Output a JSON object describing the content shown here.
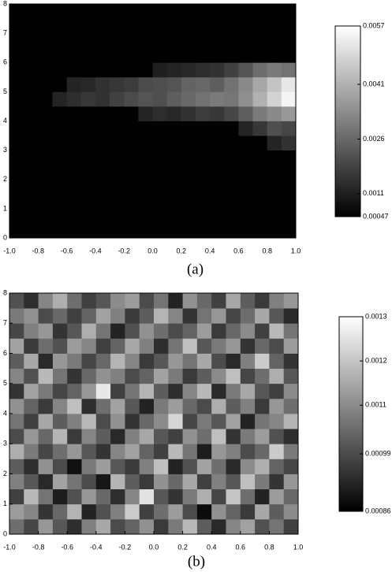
{
  "chart_data": [
    {
      "type": "heatmap",
      "caption": "(a)",
      "xlim": [
        -1,
        1
      ],
      "ylim": [
        0,
        8
      ],
      "xticks": [
        {
          "value": -1,
          "label": "-1.0"
        },
        {
          "value": -0.8,
          "label": "-0.8"
        },
        {
          "value": -0.6,
          "label": "-0.6"
        },
        {
          "value": -0.4,
          "label": "-0.4"
        },
        {
          "value": -0.2,
          "label": "-0.2"
        },
        {
          "value": 0,
          "label": "0.0"
        },
        {
          "value": 0.2,
          "label": "0.2"
        },
        {
          "value": 0.4,
          "label": "0.4"
        },
        {
          "value": 0.6,
          "label": "0.6"
        },
        {
          "value": 0.8,
          "label": "0.8"
        },
        {
          "value": 1,
          "label": "1.0"
        }
      ],
      "yticks": [
        0,
        1,
        2,
        3,
        4,
        5,
        6,
        7,
        8
      ],
      "clim": [
        0.00047,
        0.0057
      ],
      "cticks": [
        0.0057,
        0.0041,
        0.0026,
        0.0011,
        0.00047
      ],
      "z": [
        [
          0.0005,
          0.0005,
          0.0005,
          0.0005,
          0.0005,
          0.0005,
          0.0005,
          0.0005,
          0.0005,
          0.0005,
          0.0005,
          0.0005,
          0.0005,
          0.0005,
          0.0005,
          0.0005,
          0.0005,
          0.0005,
          0.0005,
          0.0005
        ],
        [
          0.0005,
          0.0005,
          0.0005,
          0.0005,
          0.0005,
          0.0005,
          0.0005,
          0.0005,
          0.0005,
          0.0005,
          0.0005,
          0.0005,
          0.0005,
          0.0005,
          0.0005,
          0.0005,
          0.0005,
          0.0005,
          0.0005,
          0.0005
        ],
        [
          0.0005,
          0.0005,
          0.0005,
          0.0005,
          0.0005,
          0.0005,
          0.0005,
          0.0005,
          0.0005,
          0.0005,
          0.0005,
          0.0005,
          0.0005,
          0.0005,
          0.0005,
          0.0005,
          0.0005,
          0.0005,
          0.0005,
          0.0005
        ],
        [
          0.0005,
          0.0005,
          0.0005,
          0.0005,
          0.0005,
          0.0005,
          0.0005,
          0.0005,
          0.0005,
          0.0005,
          0.0005,
          0.0005,
          0.0005,
          0.0005,
          0.0005,
          0.0005,
          0.0005,
          0.0005,
          0.0005,
          0.0005
        ],
        [
          0.0005,
          0.0005,
          0.0005,
          0.0005,
          0.0005,
          0.0005,
          0.0005,
          0.0005,
          0.0005,
          0.0005,
          0.0005,
          0.0005,
          0.0005,
          0.0005,
          0.0005,
          0.0005,
          0.0005,
          0.0005,
          0.0005,
          0.0005
        ],
        [
          0.0005,
          0.0005,
          0.0005,
          0.0005,
          0.0005,
          0.0005,
          0.0005,
          0.0005,
          0.0005,
          0.0005,
          0.0005,
          0.0005,
          0.0005,
          0.0005,
          0.0005,
          0.0005,
          0.0005,
          0.0005,
          0.0005,
          0.0005
        ],
        [
          0.0005,
          0.0005,
          0.0005,
          0.0005,
          0.0005,
          0.0005,
          0.0005,
          0.0005,
          0.0005,
          0.0005,
          0.0005,
          0.0005,
          0.0005,
          0.0005,
          0.0005,
          0.0005,
          0.0005,
          0.0005,
          0.0012,
          0.0015
        ],
        [
          0.0005,
          0.0005,
          0.0005,
          0.0005,
          0.0005,
          0.0005,
          0.0005,
          0.0005,
          0.0005,
          0.0005,
          0.0005,
          0.0005,
          0.0005,
          0.0005,
          0.0005,
          0.0005,
          0.0012,
          0.0016,
          0.0021,
          0.0019
        ],
        [
          0.0005,
          0.0005,
          0.0005,
          0.0005,
          0.0005,
          0.0005,
          0.0005,
          0.0005,
          0.0005,
          0.0012,
          0.0014,
          0.0013,
          0.0015,
          0.0017,
          0.0016,
          0.0019,
          0.0024,
          0.003,
          0.0033,
          0.0036
        ],
        [
          0.0005,
          0.0005,
          0.0005,
          0.0012,
          0.0014,
          0.0016,
          0.0015,
          0.0018,
          0.002,
          0.0022,
          0.0021,
          0.0024,
          0.0026,
          0.0028,
          0.003,
          0.0029,
          0.0034,
          0.0041,
          0.0048,
          0.0055
        ],
        [
          0.0005,
          0.0005,
          0.0005,
          0.0005,
          0.0012,
          0.0013,
          0.0015,
          0.0016,
          0.0017,
          0.002,
          0.0021,
          0.0022,
          0.0025,
          0.0026,
          0.0024,
          0.0028,
          0.0033,
          0.0039,
          0.0045,
          0.0052
        ],
        [
          0.0005,
          0.0005,
          0.0005,
          0.0005,
          0.0005,
          0.0005,
          0.0005,
          0.0005,
          0.0005,
          0.0005,
          0.0011,
          0.0012,
          0.0013,
          0.0014,
          0.0015,
          0.0018,
          0.0022,
          0.0027,
          0.003,
          0.0028
        ],
        [
          0.0005,
          0.0005,
          0.0005,
          0.0005,
          0.0005,
          0.0005,
          0.0005,
          0.0005,
          0.0005,
          0.0005,
          0.0005,
          0.0005,
          0.0005,
          0.0005,
          0.0005,
          0.0005,
          0.0005,
          0.0005,
          0.0005,
          0.0005
        ],
        [
          0.0005,
          0.0005,
          0.0005,
          0.0005,
          0.0005,
          0.0005,
          0.0005,
          0.0005,
          0.0005,
          0.0005,
          0.0005,
          0.0005,
          0.0005,
          0.0005,
          0.0005,
          0.0005,
          0.0005,
          0.0005,
          0.0005,
          0.0005
        ],
        [
          0.0005,
          0.0005,
          0.0005,
          0.0005,
          0.0005,
          0.0005,
          0.0005,
          0.0005,
          0.0005,
          0.0005,
          0.0005,
          0.0005,
          0.0005,
          0.0005,
          0.0005,
          0.0005,
          0.0005,
          0.0005,
          0.0005,
          0.0005
        ],
        [
          0.0005,
          0.0005,
          0.0005,
          0.0005,
          0.0005,
          0.0005,
          0.0005,
          0.0005,
          0.0005,
          0.0005,
          0.0005,
          0.0005,
          0.0005,
          0.0005,
          0.0005,
          0.0005,
          0.0005,
          0.0005,
          0.0005,
          0.0005
        ]
      ]
    },
    {
      "type": "heatmap",
      "caption": "(b)",
      "xlim": [
        -1,
        1
      ],
      "ylim": [
        0,
        8
      ],
      "xticks": [
        {
          "value": -1,
          "label": "-1.0"
        },
        {
          "value": -0.8,
          "label": "-0.8"
        },
        {
          "value": -0.6,
          "label": "-0.6"
        },
        {
          "value": -0.4,
          "label": "-0.4"
        },
        {
          "value": -0.2,
          "label": "-0.2"
        },
        {
          "value": 0,
          "label": "0.0"
        },
        {
          "value": 0.2,
          "label": "0.2"
        },
        {
          "value": 0.4,
          "label": "0.4"
        },
        {
          "value": 0.6,
          "label": "0.6"
        },
        {
          "value": 0.8,
          "label": "0.8"
        },
        {
          "value": 1,
          "label": "1.0"
        }
      ],
      "yticks": [
        0,
        1,
        2,
        3,
        4,
        5,
        6,
        7,
        8
      ],
      "clim": [
        0.00086,
        0.0013
      ],
      "cticks": [
        0.0013,
        0.0012,
        0.0011,
        0.00099,
        0.00086
      ],
      "z": [
        [
          0.00105,
          0.00098,
          0.00112,
          0.00101,
          0.00094,
          0.00108,
          0.00115,
          0.00099,
          0.00103,
          0.00111,
          0.00096,
          0.00107,
          0.00118,
          0.00102,
          0.00093,
          0.00109,
          0.00114,
          0.001,
          0.00106,
          0.00097
        ],
        [
          0.00113,
          0.00109,
          0.00095,
          0.00104,
          0.00117,
          0.00092,
          0.001,
          0.00108,
          0.00121,
          0.00097,
          0.00105,
          0.00113,
          0.00099,
          0.00088,
          0.00111,
          0.00103,
          0.00096,
          0.00115,
          0.00102,
          0.0011
        ],
        [
          0.00097,
          0.00118,
          0.00106,
          0.00091,
          0.001,
          0.00112,
          0.00104,
          0.00094,
          0.00109,
          0.00125,
          0.00101,
          0.00095,
          0.00107,
          0.00116,
          0.00098,
          0.0012,
          0.00105,
          0.00092,
          0.00113,
          0.00104
        ],
        [
          0.00108,
          0.00101,
          0.00093,
          0.00114,
          0.00106,
          0.00099,
          0.0009,
          0.00117,
          0.00102,
          0.00096,
          0.00111,
          0.00104,
          0.00115,
          0.00097,
          0.00108,
          0.00101,
          0.00119,
          0.00107,
          0.00095,
          0.00112
        ],
        [
          0.00102,
          0.00094,
          0.00111,
          0.00099,
          0.00089,
          0.00107,
          0.00113,
          0.00101,
          0.00096,
          0.00108,
          0.00119,
          0.00092,
          0.001,
          0.00114,
          0.00105,
          0.00093,
          0.0011,
          0.00116,
          0.00103,
          0.00098
        ],
        [
          0.00116,
          0.00107,
          0.00098,
          0.00105,
          0.00112,
          0.00101,
          0.00095,
          0.00109,
          0.00114,
          0.00103,
          0.00097,
          0.00118,
          0.00106,
          0.00091,
          0.00112,
          0.00108,
          0.00099,
          0.00104,
          0.00121,
          0.00107
        ],
        [
          0.00099,
          0.00112,
          0.00104,
          0.00117,
          0.00096,
          0.00109,
          0.00102,
          0.00093,
          0.00108,
          0.00115,
          0.00101,
          0.00097,
          0.00111,
          0.00105,
          0.00119,
          0.00095,
          0.00107,
          0.00113,
          0.001,
          0.00094
        ],
        [
          0.00106,
          0.00097,
          0.00115,
          0.00102,
          0.00108,
          0.00118,
          0.00099,
          0.00111,
          0.00095,
          0.00104,
          0.0011,
          0.00123,
          0.00098,
          0.00107,
          0.00101,
          0.00114,
          0.00092,
          0.00106,
          0.00109,
          0.00117
        ],
        [
          0.00111,
          0.00103,
          0.00096,
          0.00109,
          0.00119,
          0.00094,
          0.00105,
          0.00114,
          0.00101,
          0.00092,
          0.00107,
          0.00113,
          0.00104,
          0.00099,
          0.00116,
          0.00102,
          0.00108,
          0.00096,
          0.00112,
          0.00105
        ],
        [
          0.00095,
          0.00114,
          0.00107,
          0.00098,
          0.00103,
          0.00112,
          0.00126,
          0.00097,
          0.00106,
          0.00117,
          0.00102,
          0.00094,
          0.00109,
          0.00118,
          0.00093,
          0.00107,
          0.00115,
          0.00101,
          0.00097,
          0.0011
        ],
        [
          0.00109,
          0.001,
          0.00118,
          0.00106,
          0.00095,
          0.00104,
          0.00111,
          0.00108,
          0.00099,
          0.00103,
          0.00114,
          0.00107,
          0.00096,
          0.00102,
          0.0011,
          0.00119,
          0.00098,
          0.00105,
          0.00116,
          0.00101
        ],
        [
          0.00102,
          0.00115,
          0.00093,
          0.00112,
          0.00107,
          0.00098,
          0.00104,
          0.00117,
          0.00109,
          0.00096,
          0.00101,
          0.00112,
          0.00106,
          0.00115,
          0.00099,
          0.00093,
          0.00108,
          0.00121,
          0.00103,
          0.00095
        ],
        [
          0.00114,
          0.00096,
          0.00105,
          0.001,
          0.00113,
          0.00109,
          0.00097,
          0.00103,
          0.00115,
          0.00108,
          0.00094,
          0.00106,
          0.00119,
          0.00101,
          0.00107,
          0.00112,
          0.00095,
          0.00104,
          0.00099,
          0.00113
        ],
        [
          0.00098,
          0.00108,
          0.00112,
          0.00095,
          0.00101,
          0.00116,
          0.00106,
          0.00092,
          0.001,
          0.00111,
          0.00105,
          0.00099,
          0.00103,
          0.00113,
          0.00096,
          0.00104,
          0.0011,
          0.00097,
          0.00118,
          0.00106
        ],
        [
          0.00107,
          0.00111,
          0.00099,
          0.00104,
          0.00097,
          0.00103,
          0.00114,
          0.00108,
          0.00096,
          0.00102,
          0.00117,
          0.00109,
          0.00095,
          0.00106,
          0.00112,
          0.00098,
          0.00105,
          0.00115,
          0.00101,
          0.00093
        ],
        [
          0.001,
          0.00094,
          0.00109,
          0.00116,
          0.00105,
          0.00097,
          0.00101,
          0.0011,
          0.00113,
          0.00099,
          0.00106,
          0.00092,
          0.00111,
          0.00104,
          0.00097,
          0.00115,
          0.00102,
          0.00096,
          0.00108,
          0.00112
        ]
      ]
    }
  ]
}
